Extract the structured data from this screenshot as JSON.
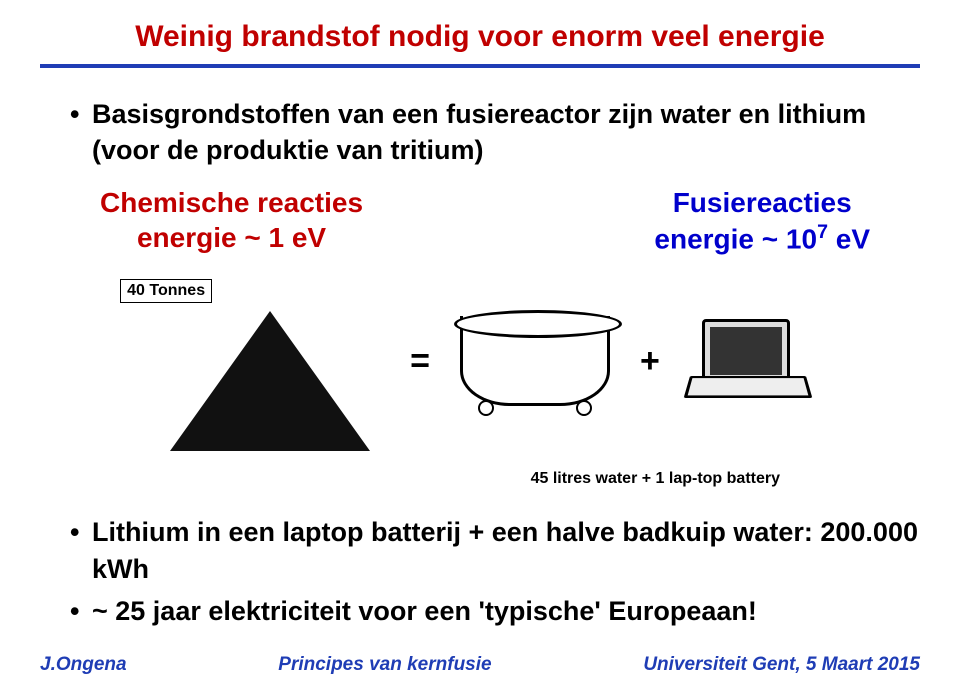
{
  "colors": {
    "title": "#c00000",
    "rule": "#1f3db5",
    "chem": "#c00000",
    "fusie": "#0000cc",
    "footer": "#1f3db5"
  },
  "title": "Weinig brandstof nodig voor enorm veel energie",
  "intro_bullet": "Basisgrondstoffen van een fusiereactor zijn water en lithium (voor de produktie van tritium)",
  "columns": {
    "left_line1": "Chemische reacties",
    "left_line2": "energie ~ 1 eV",
    "right_line1": "Fusiereacties",
    "right_line2_prefix": "energie ~ 10",
    "right_line2_sup": "7",
    "right_line2_suffix": " eV"
  },
  "figure": {
    "coal_label": "40 Tonnes",
    "equals": "=",
    "plus": "+",
    "caption": "45 litres water + 1 lap-top battery"
  },
  "bullets": [
    "Lithium in een laptop batterij + een halve badkuip water: 200.000 kWh",
    "~ 25 jaar elektriciteit voor een 'typische' Europeaan!"
  ],
  "footer": {
    "left": "J.Ongena",
    "center": "Principes van kernfusie",
    "right": "Universiteit Gent, 5 Maart 2015"
  }
}
